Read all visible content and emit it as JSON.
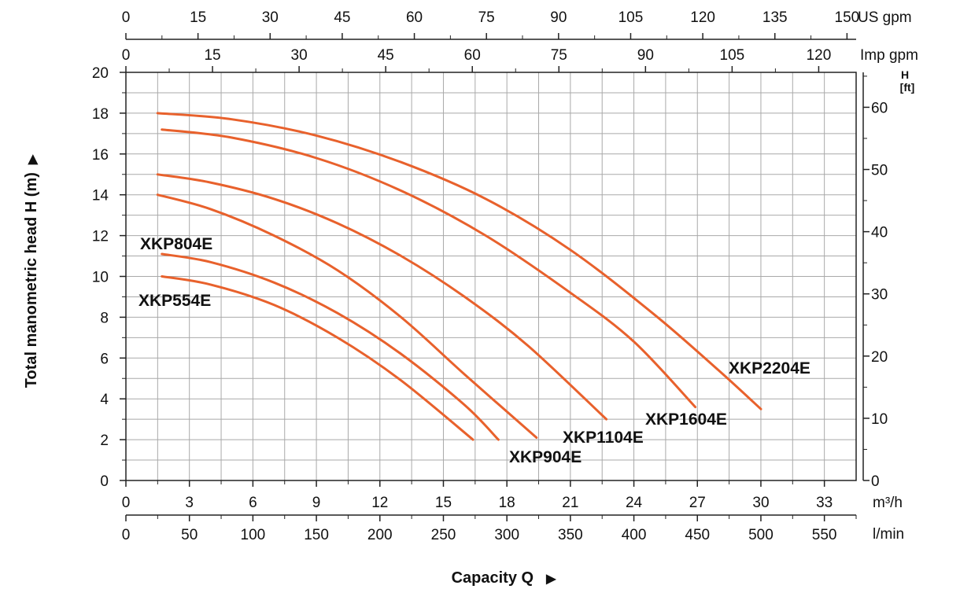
{
  "chart_data": {
    "type": "line",
    "xlabel": "Capacity Q",
    "ylabel": "Total manometric head H (m)",
    "xlim": [
      0,
      34.5
    ],
    "ylim": [
      0,
      20
    ],
    "grid": true,
    "x_unit": "m³/h",
    "y2_label": "H",
    "y2_unit": "[ft]",
    "arrow_glyph": "▶",
    "axes": {
      "bottom_m3h": {
        "unit": "m³/h",
        "ticks": [
          0,
          3,
          6,
          9,
          12,
          15,
          18,
          21,
          24,
          27,
          30,
          33
        ]
      },
      "bottom_lmin": {
        "unit": "l/min",
        "ticks": [
          0,
          50,
          100,
          150,
          200,
          250,
          300,
          350,
          400,
          450,
          500,
          550
        ]
      },
      "top_usgpm": {
        "unit": "US gpm",
        "ticks": [
          0,
          15,
          30,
          45,
          60,
          75,
          90,
          105,
          120,
          135,
          150
        ]
      },
      "top_impgpm": {
        "unit": "Imp gpm",
        "ticks": [
          0,
          15,
          30,
          45,
          60,
          75,
          90,
          105,
          120
        ]
      },
      "left_m": {
        "ticks": [
          0,
          2,
          4,
          6,
          8,
          10,
          12,
          14,
          16,
          18,
          20
        ]
      },
      "right_ft": {
        "ticks": [
          0,
          10,
          20,
          30,
          40,
          50,
          60
        ]
      }
    },
    "series": [
      {
        "name": "XKP554E",
        "color": "#e8612c",
        "points": [
          [
            1.7,
            10.0
          ],
          [
            4,
            9.6
          ],
          [
            7,
            8.6
          ],
          [
            10,
            7.0
          ],
          [
            13,
            4.9
          ],
          [
            16.4,
            2.0
          ]
        ]
      },
      {
        "name": "XKP804E",
        "color": "#e8612c",
        "points": [
          [
            1.7,
            11.1
          ],
          [
            4,
            10.7
          ],
          [
            7,
            9.7
          ],
          [
            10,
            8.2
          ],
          [
            13,
            6.2
          ],
          [
            16,
            3.7
          ],
          [
            17.6,
            2.0
          ]
        ]
      },
      {
        "name": "XKP904E",
        "color": "#e8612c",
        "points": [
          [
            1.5,
            14.0
          ],
          [
            4,
            13.3
          ],
          [
            7,
            12.0
          ],
          [
            10,
            10.3
          ],
          [
            13,
            8.0
          ],
          [
            16,
            5.2
          ],
          [
            19.4,
            2.1
          ]
        ]
      },
      {
        "name": "XKP1104E",
        "color": "#e8612c",
        "points": [
          [
            1.5,
            15.0
          ],
          [
            4,
            14.6
          ],
          [
            7,
            13.8
          ],
          [
            10,
            12.6
          ],
          [
            13,
            11.0
          ],
          [
            16,
            9.0
          ],
          [
            19,
            6.6
          ],
          [
            22.7,
            3.0
          ]
        ]
      },
      {
        "name": "XKP1604E",
        "color": "#e8612c",
        "points": [
          [
            1.7,
            17.2
          ],
          [
            5,
            16.8
          ],
          [
            9,
            15.8
          ],
          [
            13,
            14.2
          ],
          [
            17,
            12.0
          ],
          [
            21,
            9.2
          ],
          [
            24,
            6.8
          ],
          [
            26.9,
            3.6
          ]
        ]
      },
      {
        "name": "XKP2204E",
        "color": "#e8612c",
        "points": [
          [
            1.5,
            18.0
          ],
          [
            5,
            17.7
          ],
          [
            9,
            16.9
          ],
          [
            13,
            15.6
          ],
          [
            17,
            13.8
          ],
          [
            21,
            11.3
          ],
          [
            25,
            8.1
          ],
          [
            28,
            5.4
          ],
          [
            30.0,
            3.5
          ]
        ]
      }
    ],
    "labels": {
      "XKP554E": "XKP554E",
      "XKP804E": "XKP804E",
      "XKP904E": "XKP904E",
      "XKP1104E": "XKP1104E",
      "XKP1604E": "XKP1604E",
      "XKP2204E": "XKP2204E"
    }
  }
}
